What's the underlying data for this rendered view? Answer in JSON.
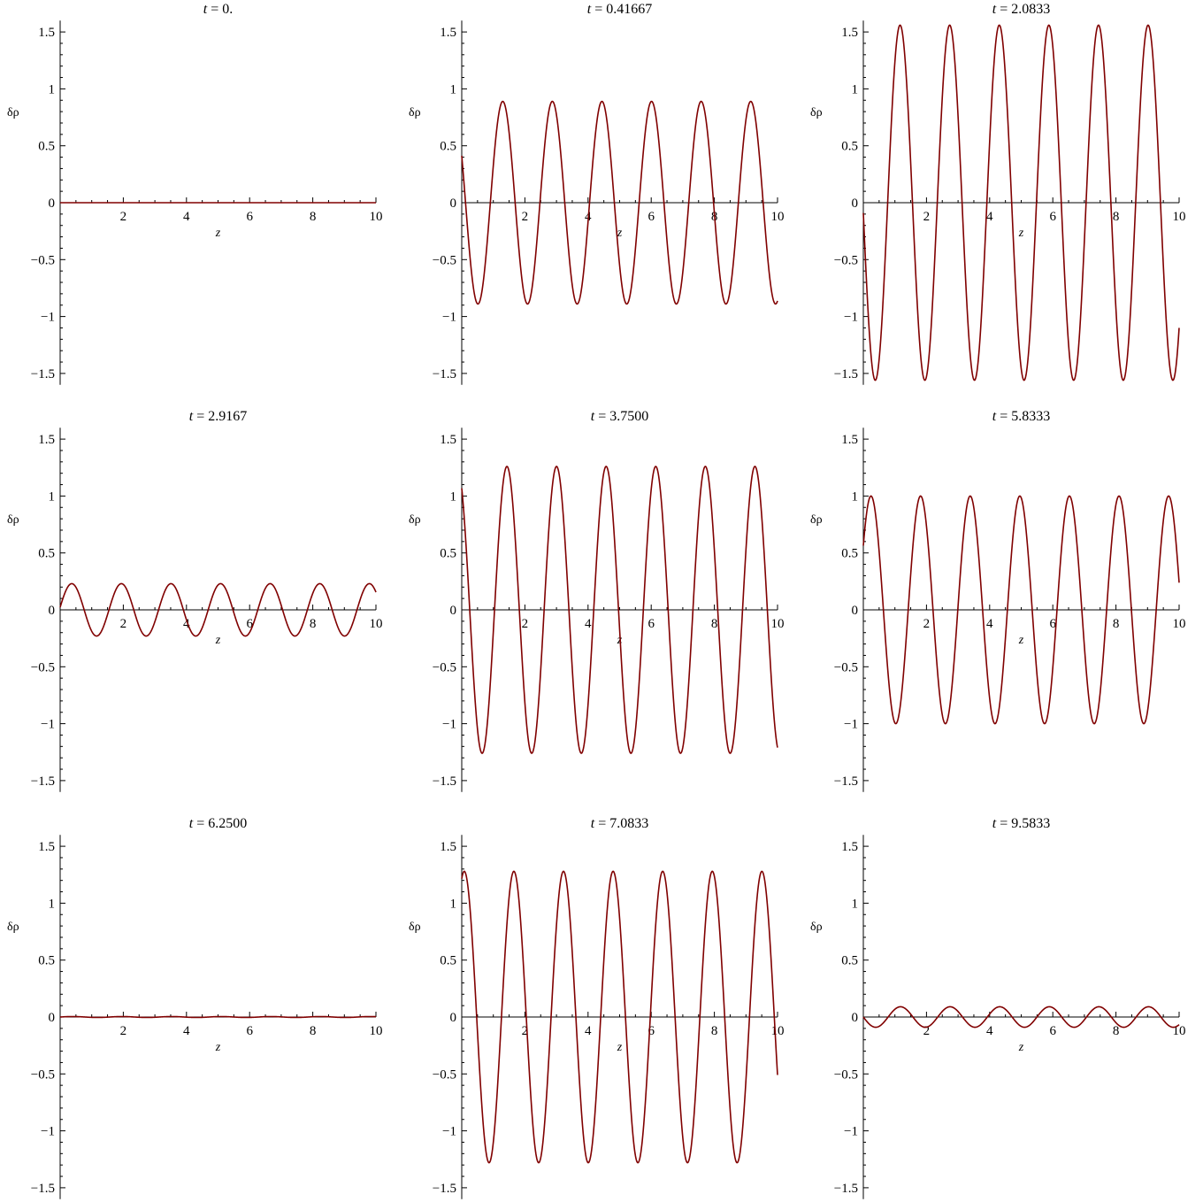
{
  "chart_data": [
    {
      "type": "line",
      "title": "t = 0.",
      "title_var": "t",
      "title_rest": " = 0.",
      "xlabel": "z",
      "ylabel": "δρ",
      "xlim": [
        0,
        10
      ],
      "ylim": [
        -1.6,
        1.6
      ],
      "xticks": [
        "2",
        "4",
        "6",
        "8",
        "10"
      ],
      "yticks": [
        "1.5",
        "1",
        "0.5",
        "0",
        "−0.5",
        "−1",
        "−1.5"
      ],
      "series": [
        {
          "curve": "A·sin(k·z + φ)",
          "amplitude": 0.0,
          "phase": 0.0,
          "k": 4.0,
          "color": "#800000"
        }
      ]
    },
    {
      "type": "line",
      "title": "t = 0.41667",
      "title_var": "t",
      "title_rest": " = 0.41667",
      "xlabel": "z",
      "ylabel": "δρ",
      "xlim": [
        0,
        10
      ],
      "ylim": [
        -1.6,
        1.6
      ],
      "xticks": [
        "2",
        "4",
        "6",
        "8",
        "10"
      ],
      "yticks": [
        "1.5",
        "1",
        "0.5",
        "0",
        "−0.5",
        "−1",
        "−1.5"
      ],
      "series": [
        {
          "curve": "A·sin(k·z + φ)",
          "amplitude": 0.89,
          "phase": 2.66,
          "k": 4.0,
          "color": "#800000"
        }
      ]
    },
    {
      "type": "line",
      "title": "t = 2.0833",
      "title_var": "t",
      "title_rest": " = 2.0833",
      "xlabel": "z",
      "ylabel": "δρ",
      "xlim": [
        0,
        10
      ],
      "ylim": [
        -1.6,
        1.6
      ],
      "xticks": [
        "2",
        "4",
        "6",
        "8",
        "10"
      ],
      "yticks": [
        "1.5",
        "1",
        "0.5",
        "0",
        "−0.5",
        "−1",
        "−1.5"
      ],
      "series": [
        {
          "curve": "A·sin(k·z + φ)",
          "amplitude": 1.56,
          "phase": 3.2,
          "k": 4.0,
          "color": "#800000"
        }
      ]
    },
    {
      "type": "line",
      "title": "t = 2.9167",
      "title_var": "t",
      "title_rest": " = 2.9167",
      "xlabel": "z",
      "ylabel": "δρ",
      "xlim": [
        0,
        10
      ],
      "ylim": [
        -1.6,
        1.6
      ],
      "xticks": [
        "2",
        "4",
        "6",
        "8",
        "10"
      ],
      "yticks": [
        "1.5",
        "1",
        "0.5",
        "0",
        "−0.5",
        "−1",
        "−1.5"
      ],
      "series": [
        {
          "curve": "A·sin(k·z + φ)",
          "amplitude": 0.23,
          "phase": 0.1,
          "k": 4.0,
          "color": "#800000"
        }
      ]
    },
    {
      "type": "line",
      "title": "t = 3.7500",
      "title_var": "t",
      "title_rest": " = 3.7500",
      "xlabel": "z",
      "ylabel": "δρ",
      "xlim": [
        0,
        10
      ],
      "ylim": [
        -1.6,
        1.6
      ],
      "xticks": [
        "2",
        "4",
        "6",
        "8",
        "10"
      ],
      "yticks": [
        "1.5",
        "1",
        "0.5",
        "0",
        "−0.5",
        "−1",
        "−1.5"
      ],
      "series": [
        {
          "curve": "A·sin(k·z + φ)",
          "amplitude": 1.26,
          "phase": 2.13,
          "k": 4.0,
          "color": "#800000"
        }
      ]
    },
    {
      "type": "line",
      "title": "t = 5.8333",
      "title_var": "t",
      "title_rest": " = 5.8333",
      "xlabel": "z",
      "ylabel": "δρ",
      "xlim": [
        0,
        10
      ],
      "ylim": [
        -1.6,
        1.6
      ],
      "xticks": [
        "2",
        "4",
        "6",
        "8",
        "10"
      ],
      "yticks": [
        "1.5",
        "1",
        "0.5",
        "0",
        "−0.5",
        "−1",
        "−1.5"
      ],
      "series": [
        {
          "curve": "A·sin(k·z + φ)",
          "amplitude": 1.0,
          "phase": 0.6,
          "k": 4.0,
          "color": "#800000"
        }
      ]
    },
    {
      "type": "line",
      "title": "t = 6.2500",
      "title_var": "t",
      "title_rest": " = 6.2500",
      "xlabel": "z",
      "ylabel": "δρ",
      "xlim": [
        0,
        10
      ],
      "ylim": [
        -1.6,
        1.6
      ],
      "xticks": [
        "2",
        "4",
        "6",
        "8",
        "10"
      ],
      "yticks": [
        "1.5",
        "1",
        "0.5",
        "0",
        "−0.5",
        "−1",
        "−1.5"
      ],
      "series": [
        {
          "curve": "A·sin(k·z + φ)",
          "amplitude": 0.004,
          "phase": 0.0,
          "k": 4.0,
          "color": "#800000"
        }
      ]
    },
    {
      "type": "line",
      "title": "t = 7.0833",
      "title_var": "t",
      "title_rest": " = 7.0833",
      "xlabel": "z",
      "ylabel": "δρ",
      "xlim": [
        0,
        10
      ],
      "ylim": [
        -1.6,
        1.6
      ],
      "xticks": [
        "2",
        "4",
        "6",
        "8",
        "10"
      ],
      "yticks": [
        "1.5",
        "1",
        "0.5",
        "0",
        "−0.5",
        "−1",
        "−1.5"
      ],
      "series": [
        {
          "curve": "A·sin(k·z + φ)",
          "amplitude": 1.28,
          "phase": 1.25,
          "k": 4.0,
          "color": "#800000"
        }
      ]
    },
    {
      "type": "line",
      "title": "t = 9.5833",
      "title_var": "t",
      "title_rest": " = 9.5833",
      "xlabel": "z",
      "ylabel": "δρ",
      "xlim": [
        0,
        10
      ],
      "ylim": [
        -1.6,
        1.6
      ],
      "xticks": [
        "2",
        "4",
        "6",
        "8",
        "10"
      ],
      "yticks": [
        "1.5",
        "1",
        "0.5",
        "0",
        "−0.5",
        "−1",
        "−1.5"
      ],
      "series": [
        {
          "curve": "A·sin(k·z + φ)",
          "amplitude": 0.09,
          "phase": -3.14,
          "k": 4.0,
          "color": "#800000"
        }
      ]
    }
  ]
}
